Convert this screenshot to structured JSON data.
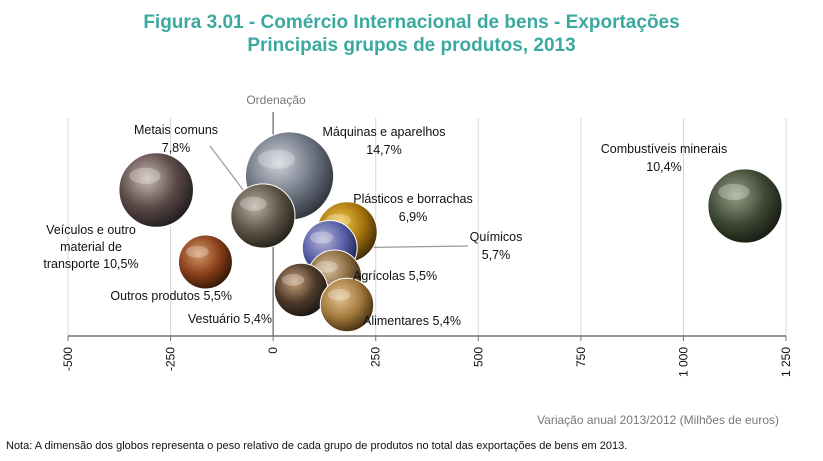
{
  "title_line1": "Figura 3.01 - Comércio Internacional de bens - Exportações",
  "title_line2": "Principais grupos de produtos, 2013",
  "note": "Nota: A dimensão dos globos representa o peso relativo de cada grupo de produtos no total das exportações de bens em 2013.",
  "colors": {
    "title": "#3ca9a0",
    "axis": "#777777",
    "grid": "#d8d8d8",
    "text": "#111111",
    "leader": "#999999"
  },
  "chart_data": {
    "type": "scatter",
    "subtype": "bubble",
    "xlabel": "Variação anual 2013/2012 (Milhões de euros)",
    "ylabel": "Ordenação",
    "xlim": [
      -500,
      1250
    ],
    "xticks": [
      -500,
      -250,
      0,
      250,
      500,
      750,
      1000,
      1250
    ],
    "xtick_labels": [
      "-500",
      "-250",
      "0",
      "250",
      "500",
      "750",
      "1 000",
      "1 250"
    ],
    "grid": true,
    "series": [
      {
        "label": "Máquinas e aparelhos",
        "share": "14,7%",
        "share_value": 14.7,
        "x": 40,
        "rank": 1,
        "colors": [
          "#d0d3db",
          "#6f7784",
          "#2b2f38"
        ]
      },
      {
        "label": "Combustíveis minerais",
        "share": "10,4%",
        "share_value": 10.4,
        "x": 1150,
        "rank": 2,
        "colors": [
          "#9aa08a",
          "#3f4a35",
          "#151810"
        ]
      },
      {
        "label": "Veículos e outro material de transporte",
        "label_lines": [
          "Veículos e outro",
          "material de",
          "transporte 10,5%"
        ],
        "share_value": 10.5,
        "x": -285,
        "rank": 3,
        "colors": [
          "#c9b9b3",
          "#5c4a48",
          "#1e1a1c"
        ]
      },
      {
        "label": "Metais comuns",
        "share": "7,8%",
        "share_value": 7.8,
        "x": -25,
        "rank": 4,
        "colors": [
          "#b8b0a2",
          "#5d5547",
          "#221e18"
        ]
      },
      {
        "label": "Plásticos e borrachas",
        "share": "6,9%",
        "share_value": 6.9,
        "x": 180,
        "rank": 5,
        "colors": [
          "#f2c84a",
          "#a8760e",
          "#3a2806"
        ]
      },
      {
        "label": "Químicos",
        "share": "5,7%",
        "share_value": 5.7,
        "x": 138,
        "rank": 6,
        "colors": [
          "#b9b7d8",
          "#5860a8",
          "#1d2048"
        ]
      },
      {
        "label": "Agrícolas",
        "share": "5,5%",
        "share_value": 5.5,
        "x": 150,
        "rank": 7,
        "colors": [
          "#d8bf9c",
          "#8a6a3f",
          "#2d2012"
        ]
      },
      {
        "label": "Outros produtos",
        "share": "5,5%",
        "share_value": 5.5,
        "x": -165,
        "rank": 8,
        "colors": [
          "#d59a6a",
          "#8a3f1b",
          "#2e1406"
        ]
      },
      {
        "label": "Vestuário",
        "share": "5,4%",
        "share_value": 5.4,
        "x": 68,
        "rank": 9,
        "colors": [
          "#c8a27a",
          "#4d3a2a",
          "#181410"
        ]
      },
      {
        "label": "Alimentares",
        "share": "5,4%",
        "share_value": 5.4,
        "x": 180,
        "rank": 10,
        "colors": [
          "#e6c594",
          "#a37a3c",
          "#3d2a0e"
        ]
      }
    ]
  }
}
